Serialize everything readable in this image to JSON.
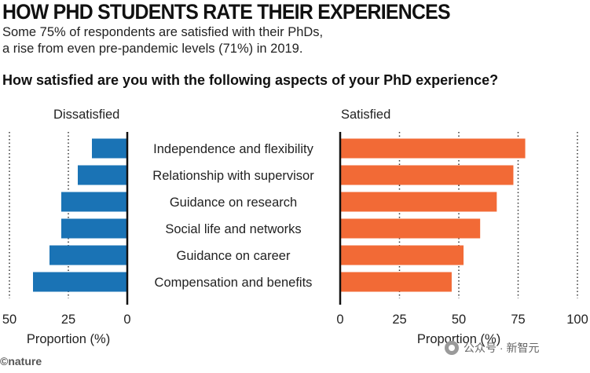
{
  "header": {
    "title": "HOW PHD STUDENTS RATE THEIR EXPERIENCES",
    "subtitle_line1": "Some 75% of respondents are satisfied with their PhDs,",
    "subtitle_line2": "a rise from even pre-pandemic levels (71%) in 2019.",
    "question": "How satisfied are you with the following aspects of your PhD experience?"
  },
  "footer": {
    "credit": "©nature",
    "watermark": "公众号 · 新智元"
  },
  "colors": {
    "dissatisfied": "#1a73b5",
    "satisfied": "#f26a36"
  },
  "chart_data": {
    "type": "bar",
    "orientation": "horizontal-diverging",
    "categories": [
      "Independence and flexibility",
      "Relationship with supervisor",
      "Guidance on research",
      "Social life and networks",
      "Guidance on career",
      "Compensation and benefits"
    ],
    "series": [
      {
        "name": "Dissatisfied",
        "values": [
          15,
          21,
          28,
          28,
          33,
          40
        ],
        "xlim": [
          50,
          0
        ],
        "ticks": [
          "50",
          "25",
          "0"
        ],
        "xlabel": "Proportion (%)"
      },
      {
        "name": "Satisfied",
        "values": [
          78,
          73,
          66,
          59,
          52,
          47
        ],
        "xlim": [
          0,
          100
        ],
        "ticks": [
          "0",
          "25",
          "50",
          "75",
          "100"
        ],
        "xlabel": "Proportion (%)"
      }
    ],
    "grid": true
  }
}
